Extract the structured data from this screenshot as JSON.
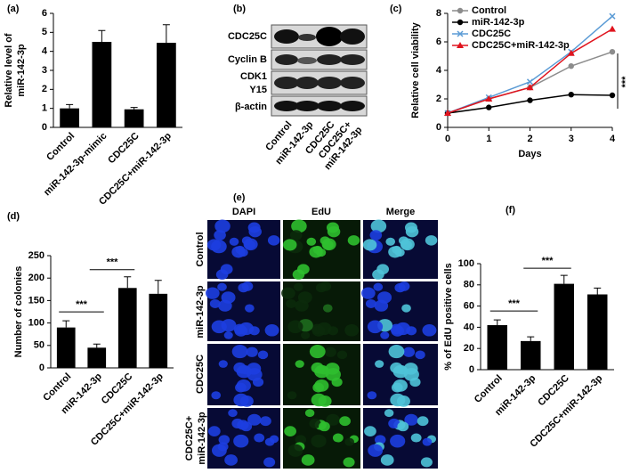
{
  "chart_data": [
    {
      "type": "bar",
      "panel_label": "(a)",
      "y_label": [
        "Relative level of",
        "miR-142-3p"
      ],
      "categories": [
        "Control",
        "miR-142-3p-mimic",
        "CDC25C",
        "CDC25C+miR-142-3p"
      ],
      "values": [
        1,
        4.5,
        0.95,
        4.45
      ],
      "errors": [
        0.2,
        0.6,
        0.1,
        0.95
      ],
      "color": "#000000",
      "ylim": [
        0,
        6
      ],
      "yticks": [
        0,
        1,
        2,
        3,
        4,
        5,
        6
      ],
      "significance": []
    },
    {
      "type": "line",
      "panel_label": "(c)",
      "y_label": [
        "Relative cell viability"
      ],
      "x_label": "Days",
      "x": [
        0,
        1,
        2,
        3,
        4
      ],
      "xlim": [
        0,
        4
      ],
      "xticks": [
        0,
        1,
        2,
        3,
        4
      ],
      "ylim": [
        0,
        8
      ],
      "yticks": [
        0,
        2,
        4,
        6,
        8
      ],
      "series": [
        {
          "name": "Control",
          "color": "#8c8c8c",
          "marker": "circle",
          "values": [
            1,
            2,
            2.8,
            4.3,
            5.3
          ]
        },
        {
          "name": "miR-142-3p",
          "color": "#000000",
          "marker": "circle",
          "values": [
            1,
            1.4,
            1.9,
            2.3,
            2.25
          ]
        },
        {
          "name": "CDC25C",
          "color": "#5b9bd5",
          "marker": "x",
          "values": [
            1,
            2.1,
            3.2,
            5.3,
            7.8
          ]
        },
        {
          "name": "CDC25C+miR-142-3p",
          "color": "#e0141e",
          "marker": "triangle",
          "values": [
            1,
            2,
            2.8,
            5.2,
            6.9
          ]
        }
      ],
      "significance": [
        "***"
      ]
    },
    {
      "type": "bar",
      "panel_label": "(d)",
      "y_label": [
        "Number of colonies"
      ],
      "categories": [
        "Control",
        "miR-142-3p",
        "CDC25C",
        "CDC25C+miR-142-3p"
      ],
      "values": [
        90,
        45,
        178,
        165
      ],
      "errors": [
        15,
        8,
        25,
        30
      ],
      "color": "#000000",
      "ylim": [
        0,
        250
      ],
      "yticks": [
        0,
        50,
        100,
        150,
        200,
        250
      ],
      "significance": [
        "***",
        "***"
      ]
    },
    {
      "type": "bar",
      "panel_label": "(f)",
      "y_label": [
        "% of EdU positive cells"
      ],
      "categories": [
        "Control",
        "miR-142-3p",
        "CDC25C",
        "CDC25C+miR-142-3p"
      ],
      "values": [
        42,
        27,
        81,
        71
      ],
      "errors": [
        5,
        4,
        8,
        6
      ],
      "color": "#000000",
      "ylim": [
        0,
        100
      ],
      "yticks": [
        0,
        20,
        40,
        60,
        80,
        100
      ],
      "significance": [
        "***",
        "***"
      ]
    }
  ],
  "blot": {
    "panel_label": "(b)",
    "rows": [
      "CDC25C",
      "Cyclin B",
      "CDK1",
      "Y15",
      "β-actin"
    ],
    "lanes": [
      "Control",
      "miR-142-3p",
      "CDC25C",
      "CDC25C+",
      "miR-142-3p"
    ]
  },
  "microscopy": {
    "panel_label": "(e)",
    "columns": [
      "DAPI",
      "EdU",
      "Merge"
    ],
    "rows": [
      "Control",
      "miR-142-3p",
      "CDC25C",
      "CDC25C+",
      "miR-142-3p"
    ]
  }
}
